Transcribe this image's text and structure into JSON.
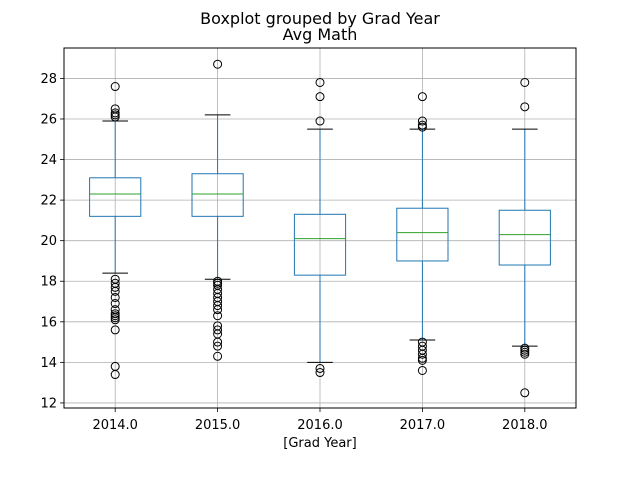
{
  "chart_data": {
    "type": "boxplot",
    "suptitle": "Boxplot grouped by Grad Year",
    "title": "Avg Math",
    "xlabel": "[Grad Year]",
    "ylabel": "",
    "ylim": [
      11.75,
      29.5
    ],
    "yticks": [
      12,
      14,
      16,
      18,
      20,
      22,
      24,
      26,
      28
    ],
    "grid": true,
    "colors": {
      "box": "#1f77b4",
      "median": "#2ca02c",
      "whisker": "#000000",
      "flier": "#000000",
      "grid": "#b0b0b0"
    },
    "categories": [
      "2014.0",
      "2015.0",
      "2016.0",
      "2017.0",
      "2018.0"
    ],
    "boxes": [
      {
        "label": "2014.0",
        "whislo": 18.4,
        "q1": 21.2,
        "median": 22.3,
        "q3": 23.1,
        "whishi": 25.9,
        "fliers": [
          27.6,
          26.5,
          26.3,
          26.2,
          26.1,
          18.1,
          17.9,
          17.7,
          17.5,
          17.2,
          16.9,
          16.6,
          16.4,
          16.3,
          16.2,
          16.1,
          15.6,
          13.8,
          13.4
        ]
      },
      {
        "label": "2015.0",
        "whislo": 18.1,
        "q1": 21.2,
        "median": 22.3,
        "q3": 23.3,
        "whishi": 26.2,
        "fliers": [
          28.7,
          18.0,
          17.9,
          17.8,
          17.6,
          17.4,
          17.2,
          17.0,
          16.8,
          16.6,
          16.3,
          15.8,
          15.6,
          15.4,
          15.0,
          14.8,
          14.3
        ]
      },
      {
        "label": "2016.0",
        "whislo": 14.0,
        "q1": 18.3,
        "median": 20.1,
        "q3": 21.3,
        "whishi": 25.5,
        "fliers": [
          27.8,
          27.1,
          25.9,
          13.7,
          13.5
        ]
      },
      {
        "label": "2017.0",
        "whislo": 15.1,
        "q1": 19.0,
        "median": 20.4,
        "q3": 21.6,
        "whishi": 25.5,
        "fliers": [
          27.1,
          25.9,
          25.7,
          25.6,
          15.0,
          14.8,
          14.6,
          14.4,
          14.2,
          14.1,
          13.6
        ]
      },
      {
        "label": "2018.0",
        "whislo": 14.8,
        "q1": 18.8,
        "median": 20.3,
        "q3": 21.5,
        "whishi": 25.5,
        "fliers": [
          27.8,
          26.6,
          14.7,
          14.6,
          14.5,
          14.4,
          12.5
        ]
      }
    ]
  }
}
